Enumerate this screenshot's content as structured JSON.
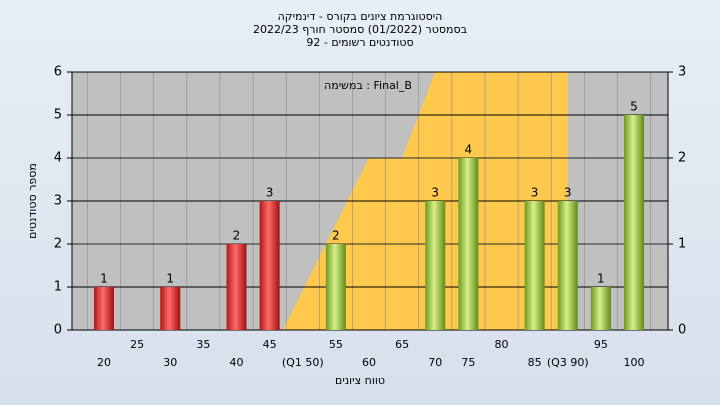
{
  "chart_data": {
    "type": "bar",
    "title": [
      "היסטוגרמת ציונים בקורס - דינמיקה",
      "בסמסטר  (01/2022)  סמסטר חורף 2022/23",
      "סטודנטים רשומים - 92"
    ],
    "annotation": "במשימה : Final_B",
    "x_label": "טווח ציונים",
    "y_label": "מספר סטודנטים",
    "categories": [
      "20",
      "25",
      "30",
      "35",
      "40",
      "45",
      "(Q1 50)",
      "55",
      "60",
      "65",
      "70",
      "75",
      "80",
      "85",
      "(Q3 90)",
      "95",
      "100"
    ],
    "values": [
      1,
      0,
      1,
      0,
      2,
      3,
      0,
      2,
      0,
      0,
      3,
      4,
      0,
      3,
      3,
      1,
      5
    ],
    "colors": [
      "red",
      "red",
      "red",
      "red",
      "red",
      "red",
      "green",
      "green",
      "green",
      "green",
      "green",
      "green",
      "green",
      "green",
      "green",
      "green",
      "green"
    ],
    "ylim": [
      0,
      6
    ],
    "yticks": [
      0,
      1,
      2,
      3,
      4,
      5,
      6
    ],
    "y2lim": [
      0,
      3
    ],
    "y2ticks": [
      0,
      1,
      2,
      3
    ],
    "area": {
      "type": "area",
      "axis": "y2",
      "color": "#ffc94d",
      "x": [
        47,
        60,
        65,
        70,
        90,
        90
      ],
      "values": [
        0,
        2,
        2,
        3,
        3,
        0
      ]
    },
    "grid": true
  }
}
